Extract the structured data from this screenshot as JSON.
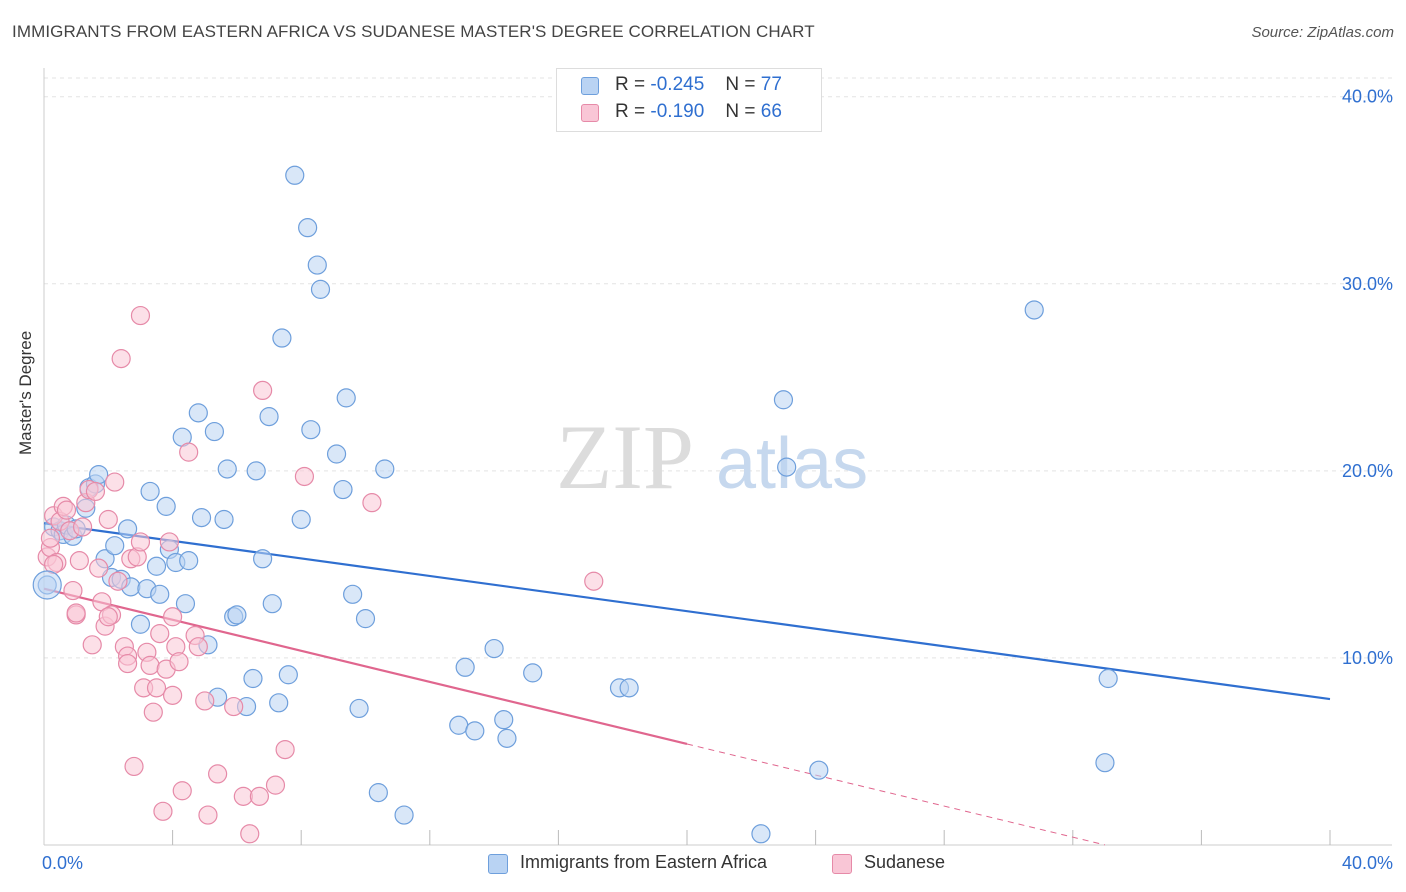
{
  "title": "IMMIGRANTS FROM EASTERN AFRICA VS SUDANESE MASTER'S DEGREE CORRELATION CHART",
  "source": "Source: ZipAtlas.com",
  "watermark": {
    "zip": "ZIP",
    "atlas": "atlas"
  },
  "stats": {
    "blue": {
      "r_label": "R =",
      "r_value": "-0.245",
      "n_label": "N =",
      "n_value": "77"
    },
    "pink": {
      "r_label": "R =",
      "r_value": "-0.190",
      "n_label": "N =",
      "n_value": "66"
    }
  },
  "legend": {
    "blue": "Immigrants from Eastern Africa",
    "pink": "Sudanese"
  },
  "colors": {
    "blue_fill": "#b9d3f3",
    "blue_stroke": "#6e9fdc",
    "blue_line": "#2f6fd0",
    "pink_fill": "#f9c6d6",
    "pink_stroke": "#e68aa8",
    "pink_line": "#e0668e",
    "axis_text": "#2f6fd0",
    "grid": "#e3e3e3"
  },
  "chart_data": {
    "type": "scatter",
    "xlabel": "",
    "ylabel": "Master's Degree",
    "xlim": [
      0,
      40
    ],
    "ylim": [
      0,
      41
    ],
    "x_tick_labels": [
      "0.0%",
      "40.0%"
    ],
    "y_ticks": [
      {
        "value": 10,
        "label": "10.0%"
      },
      {
        "value": 20,
        "label": "20.0%"
      },
      {
        "value": 30,
        "label": "30.0%"
      },
      {
        "value": 40,
        "label": "40.0%"
      }
    ],
    "series": [
      {
        "name": "Immigrants from Eastern Africa",
        "color": "blue",
        "trend": {
          "x": [
            0,
            40
          ],
          "y": [
            17.2,
            7.8
          ],
          "dashed_from": null
        },
        "points": [
          [
            0.1,
            13.9
          ],
          [
            0.3,
            17.0
          ],
          [
            0.5,
            16.8
          ],
          [
            0.6,
            16.6
          ],
          [
            0.7,
            17.1
          ],
          [
            0.9,
            16.5
          ],
          [
            1.0,
            16.9
          ],
          [
            1.3,
            18.0
          ],
          [
            1.4,
            19.1
          ],
          [
            1.6,
            19.3
          ],
          [
            1.7,
            19.8
          ],
          [
            1.9,
            15.3
          ],
          [
            2.1,
            14.3
          ],
          [
            2.2,
            16.0
          ],
          [
            2.4,
            14.2
          ],
          [
            2.6,
            16.9
          ],
          [
            2.7,
            13.8
          ],
          [
            3.0,
            11.8
          ],
          [
            3.2,
            13.7
          ],
          [
            3.3,
            18.9
          ],
          [
            3.5,
            14.9
          ],
          [
            3.6,
            13.4
          ],
          [
            3.8,
            18.1
          ],
          [
            3.9,
            15.8
          ],
          [
            4.1,
            15.1
          ],
          [
            4.3,
            21.8
          ],
          [
            4.4,
            12.9
          ],
          [
            4.5,
            15.2
          ],
          [
            4.8,
            23.1
          ],
          [
            4.9,
            17.5
          ],
          [
            5.1,
            10.7
          ],
          [
            5.3,
            22.1
          ],
          [
            5.4,
            7.9
          ],
          [
            5.6,
            17.4
          ],
          [
            5.7,
            20.1
          ],
          [
            5.9,
            12.2
          ],
          [
            6.0,
            12.3
          ],
          [
            6.3,
            7.4
          ],
          [
            6.5,
            8.9
          ],
          [
            6.6,
            20.0
          ],
          [
            6.8,
            15.3
          ],
          [
            7.0,
            22.9
          ],
          [
            7.1,
            12.9
          ],
          [
            7.3,
            7.6
          ],
          [
            7.4,
            27.1
          ],
          [
            7.6,
            9.1
          ],
          [
            7.8,
            35.8
          ],
          [
            8.0,
            17.4
          ],
          [
            8.2,
            33.0
          ],
          [
            8.3,
            22.2
          ],
          [
            8.5,
            31.0
          ],
          [
            8.6,
            29.7
          ],
          [
            9.1,
            20.9
          ],
          [
            9.3,
            19.0
          ],
          [
            9.4,
            23.9
          ],
          [
            9.6,
            13.4
          ],
          [
            9.8,
            7.3
          ],
          [
            10.0,
            12.1
          ],
          [
            10.4,
            2.8
          ],
          [
            10.6,
            20.1
          ],
          [
            11.2,
            1.6
          ],
          [
            12.9,
            6.4
          ],
          [
            13.1,
            9.5
          ],
          [
            13.4,
            6.1
          ],
          [
            14.0,
            10.5
          ],
          [
            14.3,
            6.7
          ],
          [
            14.4,
            5.7
          ],
          [
            15.2,
            9.2
          ],
          [
            17.9,
            8.4
          ],
          [
            18.2,
            8.4
          ],
          [
            22.3,
            0.6
          ],
          [
            23.0,
            23.8
          ],
          [
            23.1,
            20.2
          ],
          [
            24.1,
            4.0
          ],
          [
            30.8,
            28.6
          ],
          [
            33.0,
            4.4
          ],
          [
            33.1,
            8.9
          ]
        ]
      },
      {
        "name": "Sudanese",
        "color": "pink",
        "trend": {
          "x": [
            0,
            20
          ],
          "y": [
            13.7,
            5.4
          ],
          "dashed_to": 33.0
        },
        "points": [
          [
            0.1,
            15.4
          ],
          [
            0.2,
            15.9
          ],
          [
            0.2,
            16.4
          ],
          [
            0.3,
            17.6
          ],
          [
            0.4,
            15.1
          ],
          [
            0.5,
            17.3
          ],
          [
            0.6,
            18.1
          ],
          [
            0.7,
            17.9
          ],
          [
            0.8,
            16.8
          ],
          [
            0.9,
            13.6
          ],
          [
            1.0,
            12.3
          ],
          [
            1.1,
            15.2
          ],
          [
            1.2,
            17.0
          ],
          [
            1.3,
            18.3
          ],
          [
            1.4,
            19.0
          ],
          [
            1.5,
            10.7
          ],
          [
            1.6,
            18.9
          ],
          [
            1.7,
            14.8
          ],
          [
            1.8,
            13.0
          ],
          [
            1.9,
            11.7
          ],
          [
            2.0,
            17.4
          ],
          [
            2.1,
            12.3
          ],
          [
            2.2,
            19.4
          ],
          [
            2.3,
            14.1
          ],
          [
            2.4,
            26.0
          ],
          [
            2.5,
            10.6
          ],
          [
            2.6,
            10.1
          ],
          [
            2.7,
            15.3
          ],
          [
            2.8,
            4.2
          ],
          [
            2.9,
            15.4
          ],
          [
            3.0,
            28.3
          ],
          [
            3.1,
            8.4
          ],
          [
            3.2,
            10.3
          ],
          [
            3.3,
            9.6
          ],
          [
            3.4,
            7.1
          ],
          [
            3.5,
            8.4
          ],
          [
            3.6,
            11.3
          ],
          [
            3.7,
            1.8
          ],
          [
            3.8,
            9.4
          ],
          [
            3.9,
            16.2
          ],
          [
            4.0,
            12.2
          ],
          [
            4.1,
            10.6
          ],
          [
            4.2,
            9.8
          ],
          [
            4.3,
            2.9
          ],
          [
            4.5,
            21.0
          ],
          [
            4.7,
            11.2
          ],
          [
            4.8,
            10.6
          ],
          [
            5.0,
            7.7
          ],
          [
            5.1,
            1.6
          ],
          [
            5.4,
            3.8
          ],
          [
            5.9,
            7.4
          ],
          [
            6.2,
            2.6
          ],
          [
            6.4,
            0.6
          ],
          [
            6.7,
            2.6
          ],
          [
            6.8,
            24.3
          ],
          [
            7.2,
            3.2
          ],
          [
            7.5,
            5.1
          ],
          [
            8.1,
            19.7
          ],
          [
            10.2,
            18.3
          ],
          [
            17.1,
            14.1
          ],
          [
            0.3,
            15.0
          ],
          [
            1.0,
            12.4
          ],
          [
            2.0,
            12.2
          ],
          [
            3.0,
            16.2
          ],
          [
            4.0,
            8.0
          ],
          [
            2.6,
            9.7
          ]
        ]
      }
    ]
  }
}
